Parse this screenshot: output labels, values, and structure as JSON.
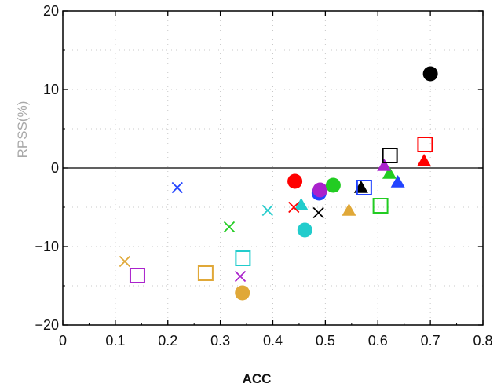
{
  "chart_data": {
    "type": "scatter",
    "title": "",
    "xlabel": "ACC",
    "ylabel": "RPSS(%)",
    "xlim": [
      0,
      0.8
    ],
    "ylim": [
      -20,
      20
    ],
    "x_ticks": [
      0,
      0.1,
      0.2,
      0.3,
      0.4,
      0.5,
      0.6,
      0.7,
      0.8
    ],
    "x_tick_labels": [
      "0",
      "0.1",
      "0.2",
      "0.3",
      "0.4",
      "0.5",
      "0.6",
      "0.7",
      "0.8"
    ],
    "y_ticks": [
      -20,
      -10,
      0,
      10,
      20
    ],
    "y_tick_labels": [
      "−20",
      "−10",
      "0",
      "10",
      "20"
    ],
    "grid": "dotted",
    "zero_line": true,
    "colors": {
      "black": "#000000",
      "red": "#ff0000",
      "blue": "#2244ff",
      "green": "#22cc22",
      "purple": "#aa22cc",
      "cyan": "#22cccc",
      "orange": "#e0a838",
      "gray": "#a0a0a0"
    },
    "points": [
      {
        "x": 0.7,
        "y": 12.0,
        "marker": "circle",
        "color": "black"
      },
      {
        "x": 0.442,
        "y": -1.7,
        "marker": "circle",
        "color": "red"
      },
      {
        "x": 0.488,
        "y": -3.2,
        "marker": "circle",
        "color": "blue"
      },
      {
        "x": 0.49,
        "y": -2.8,
        "marker": "circle",
        "color": "purple"
      },
      {
        "x": 0.515,
        "y": -2.2,
        "marker": "circle",
        "color": "green"
      },
      {
        "x": 0.461,
        "y": -7.9,
        "marker": "circle",
        "color": "cyan"
      },
      {
        "x": 0.342,
        "y": -15.9,
        "marker": "circle",
        "color": "orange"
      },
      {
        "x": 0.688,
        "y": 0.9,
        "marker": "triangle",
        "color": "red"
      },
      {
        "x": 0.638,
        "y": -1.8,
        "marker": "triangle",
        "color": "blue"
      },
      {
        "x": 0.622,
        "y": -0.7,
        "marker": "triangle",
        "color": "green"
      },
      {
        "x": 0.612,
        "y": 0.3,
        "marker": "triangle",
        "color": "purple"
      },
      {
        "x": 0.568,
        "y": -2.5,
        "marker": "triangle",
        "color": "black"
      },
      {
        "x": 0.454,
        "y": -4.7,
        "marker": "triangle",
        "color": "cyan"
      },
      {
        "x": 0.545,
        "y": -5.4,
        "marker": "triangle",
        "color": "orange"
      },
      {
        "x": 0.69,
        "y": 3.0,
        "marker": "square",
        "color": "red"
      },
      {
        "x": 0.623,
        "y": 1.6,
        "marker": "square",
        "color": "black"
      },
      {
        "x": 0.574,
        "y": -2.5,
        "marker": "square",
        "color": "blue"
      },
      {
        "x": 0.605,
        "y": -4.8,
        "marker": "square",
        "color": "green"
      },
      {
        "x": 0.343,
        "y": -11.5,
        "marker": "square",
        "color": "cyan"
      },
      {
        "x": 0.272,
        "y": -13.4,
        "marker": "square",
        "color": "orange"
      },
      {
        "x": 0.142,
        "y": -13.7,
        "marker": "square",
        "color": "purple"
      },
      {
        "x": 0.218,
        "y": -2.5,
        "marker": "x",
        "color": "blue"
      },
      {
        "x": 0.44,
        "y": -5.0,
        "marker": "x",
        "color": "red"
      },
      {
        "x": 0.487,
        "y": -5.7,
        "marker": "x",
        "color": "black"
      },
      {
        "x": 0.39,
        "y": -5.4,
        "marker": "x",
        "color": "cyan"
      },
      {
        "x": 0.317,
        "y": -7.5,
        "marker": "x",
        "color": "green"
      },
      {
        "x": 0.118,
        "y": -11.9,
        "marker": "x",
        "color": "orange"
      },
      {
        "x": 0.338,
        "y": -13.8,
        "marker": "x",
        "color": "purple"
      }
    ]
  }
}
